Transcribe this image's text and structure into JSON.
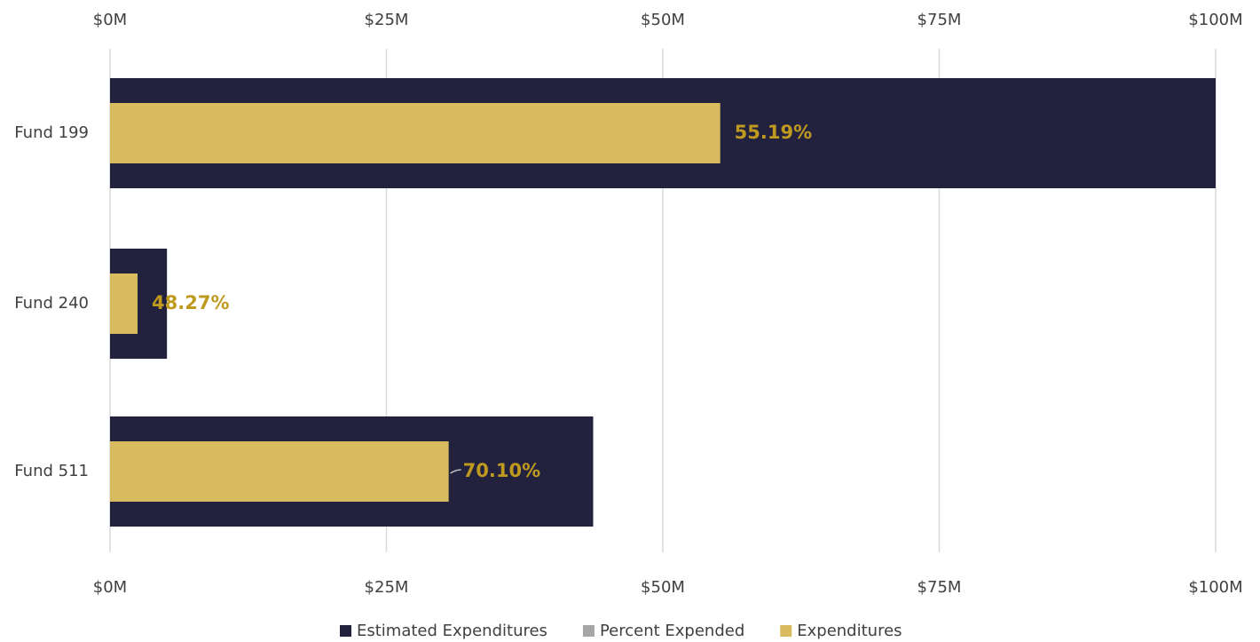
{
  "chart_data": {
    "type": "bar",
    "categories": [
      "Fund 199",
      "Fund 240",
      "Fund 511"
    ],
    "series": [
      {
        "name": "Estimated Expenditures",
        "color": "#22223f",
        "values": [
          100,
          5.15,
          43.7
        ]
      },
      {
        "name": "Percent Expended",
        "color": "#a6a6a6",
        "values": [
          55.19,
          48.27,
          70.1
        ],
        "value_labels": [
          "55.19%",
          "48.27%",
          "70.10%"
        ]
      },
      {
        "name": "Expenditures",
        "color": "#d9bb5f",
        "values": [
          55.19,
          2.49,
          30.63
        ]
      }
    ],
    "label_color": "#c09a1f",
    "xlim": [
      0,
      100
    ],
    "xticks": [
      {
        "value": 0,
        "label": "$0M"
      },
      {
        "value": 25,
        "label": "$25M"
      },
      {
        "value": 50,
        "label": "$50M"
      },
      {
        "value": 75,
        "label": "$75M"
      },
      {
        "value": 100,
        "label": "$100M"
      }
    ],
    "grid": true,
    "legend": "bottom"
  }
}
